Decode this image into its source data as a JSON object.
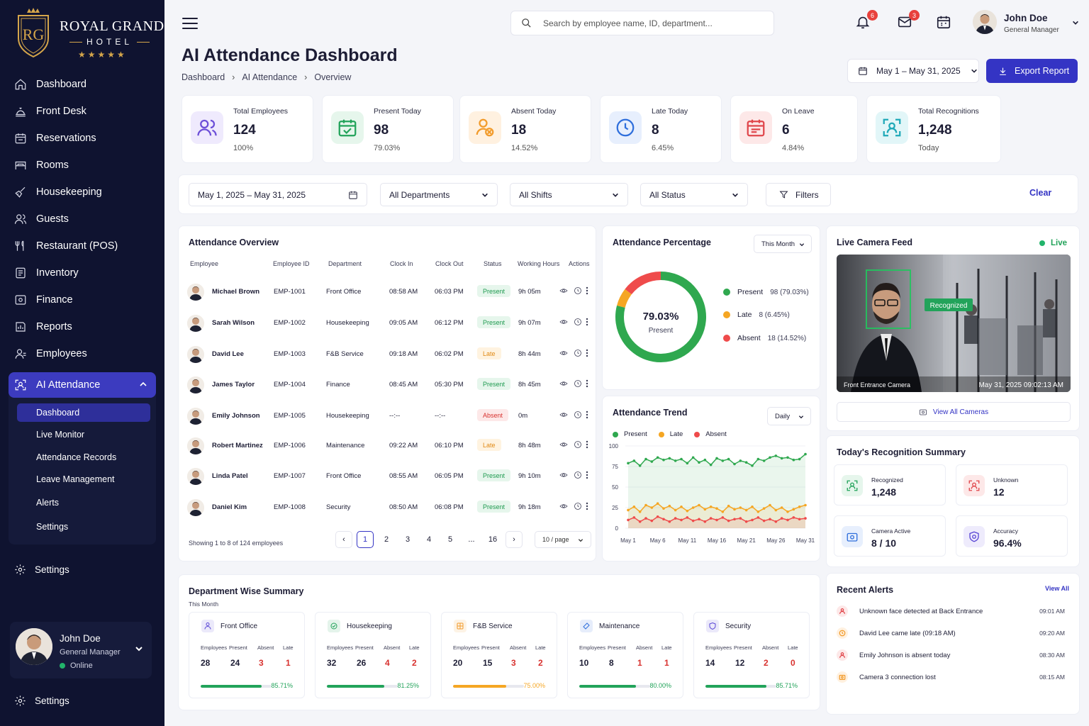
{
  "brand": {
    "monogram": "RG",
    "name": "ROYAL GRAND",
    "sub": "HOTEL",
    "stars": "★★★★★"
  },
  "sidebar": {
    "items": [
      {
        "label": "Dashboard",
        "icon": "home-icon"
      },
      {
        "label": "Front Desk",
        "icon": "bell-desk-icon"
      },
      {
        "label": "Reservations",
        "icon": "calendar-icon"
      },
      {
        "label": "Rooms",
        "icon": "bed-icon"
      },
      {
        "label": "Housekeeping",
        "icon": "broom-icon"
      },
      {
        "label": "Guests",
        "icon": "users-icon"
      },
      {
        "label": "Restaurant (POS)",
        "icon": "utensils-icon"
      },
      {
        "label": "Inventory",
        "icon": "box-icon"
      },
      {
        "label": "Finance",
        "icon": "wallet-icon"
      },
      {
        "label": "Reports",
        "icon": "chart-icon"
      },
      {
        "label": "Employees",
        "icon": "employees-icon"
      }
    ],
    "active": {
      "label": "AI Attendance",
      "icon": "ai-face-icon"
    },
    "subitems": [
      "Dashboard",
      "Live Monitor",
      "Attendance Records",
      "Leave Management",
      "Alerts",
      "Settings"
    ],
    "settings": "Settings",
    "bottom_settings": "Settings",
    "user": {
      "name": "John Doe",
      "role": "General Manager",
      "status": "Online"
    }
  },
  "header": {
    "search_placeholder": "Search by employee name, ID, department...",
    "notifications": "6",
    "messages": "3",
    "user_name": "John Doe",
    "user_role": "General Manager"
  },
  "page": {
    "title": "AI Attendance Dashboard",
    "breadcrumb": [
      "Dashboard",
      "AI Attendance",
      "Overview"
    ],
    "date_range": "May 1 – May 31, 2025",
    "export": "Export Report"
  },
  "kpis": [
    {
      "label": "Total Employees",
      "value": "124",
      "sub": "100%",
      "color": "#6c4fd8",
      "bg": "#efeafd"
    },
    {
      "label": "Present Today",
      "value": "98",
      "sub": "79.03%",
      "color": "#22a35a",
      "bg": "#e6f6ec"
    },
    {
      "label": "Absent Today",
      "value": "18",
      "sub": "14.52%",
      "color": "#f29b2b",
      "bg": "#fff1e0"
    },
    {
      "label": "Late Today",
      "value": "8",
      "sub": "6.45%",
      "color": "#2f6fdc",
      "bg": "#e7effd"
    },
    {
      "label": "On Leave",
      "value": "6",
      "sub": "4.84%",
      "color": "#e0464b",
      "bg": "#fde8e8"
    },
    {
      "label": "Total Recognitions",
      "value": "1,248",
      "sub": "Today",
      "color": "#1fa9b8",
      "bg": "#e2f6f8"
    }
  ],
  "filters": {
    "date": "May 1, 2025 – May 31, 2025",
    "department": "All Departments",
    "shift": "All Shifts",
    "status": "All Status",
    "filters": "Filters",
    "clear": "Clear"
  },
  "overview": {
    "title": "Attendance Overview",
    "columns": [
      "Employee",
      "Employee ID",
      "Department",
      "Clock In",
      "Clock Out",
      "Status",
      "Working Hours",
      "Actions"
    ],
    "rows": [
      {
        "name": "Michael Brown",
        "id": "EMP-1001",
        "dept": "Front Office",
        "in": "08:58 AM",
        "out": "06:03 PM",
        "status": "Present",
        "hours": "9h 05m"
      },
      {
        "name": "Sarah Wilson",
        "id": "EMP-1002",
        "dept": "Housekeeping",
        "in": "09:05 AM",
        "out": "06:12 PM",
        "status": "Present",
        "hours": "9h 07m"
      },
      {
        "name": "David Lee",
        "id": "EMP-1003",
        "dept": "F&B Service",
        "in": "09:18 AM",
        "out": "06:02 PM",
        "status": "Late",
        "hours": "8h 44m"
      },
      {
        "name": "James Taylor",
        "id": "EMP-1004",
        "dept": "Finance",
        "in": "08:45 AM",
        "out": "05:30 PM",
        "status": "Present",
        "hours": "8h 45m"
      },
      {
        "name": "Emily Johnson",
        "id": "EMP-1005",
        "dept": "Housekeeping",
        "in": "--:--",
        "out": "--:--",
        "status": "Absent",
        "hours": "0m"
      },
      {
        "name": "Robert Martinez",
        "id": "EMP-1006",
        "dept": "Maintenance",
        "in": "09:22 AM",
        "out": "06:10 PM",
        "status": "Late",
        "hours": "8h 48m"
      },
      {
        "name": "Linda Patel",
        "id": "EMP-1007",
        "dept": "Front Office",
        "in": "08:55 AM",
        "out": "06:05 PM",
        "status": "Present",
        "hours": "9h 10m"
      },
      {
        "name": "Daniel Kim",
        "id": "EMP-1008",
        "dept": "Security",
        "in": "08:50 AM",
        "out": "06:08 PM",
        "status": "Present",
        "hours": "9h 18m"
      }
    ],
    "footer": "Showing 1 to 8 of 124 employees",
    "pages": [
      "1",
      "2",
      "3",
      "4",
      "5",
      "...",
      "16"
    ],
    "per_page": "10 / page"
  },
  "percentage": {
    "title": "Attendance Percentage",
    "period": "This Month",
    "center_value": "79.03%",
    "center_label": "Present",
    "legend": [
      {
        "label": "Present",
        "value": "98 (79.03%)",
        "color": "#2fa84f"
      },
      {
        "label": "Late",
        "value": "8 (6.45%)",
        "color": "#f5a623"
      },
      {
        "label": "Absent",
        "value": "18 (14.52%)",
        "color": "#ef4b4b"
      }
    ]
  },
  "trend": {
    "title": "Attendance Trend",
    "period": "Daily",
    "legend": [
      "Present",
      "Late",
      "Absent"
    ]
  },
  "chart_data": [
    {
      "type": "pie",
      "title": "Attendance Percentage",
      "categories": [
        "Present",
        "Late",
        "Absent"
      ],
      "values": [
        98,
        8,
        18
      ]
    },
    {
      "type": "line",
      "title": "Attendance Trend",
      "ylim": [
        0,
        100
      ],
      "yticks": [
        "0",
        "25",
        "50",
        "75",
        "100"
      ],
      "xticks": [
        "May 1",
        "May 6",
        "May 11",
        "May 16",
        "May 21",
        "May 26",
        "May 31"
      ],
      "x": [
        "May 1",
        "May 2",
        "May 3",
        "May 4",
        "May 5",
        "May 6",
        "May 7",
        "May 8",
        "May 9",
        "May 10",
        "May 11",
        "May 12",
        "May 13",
        "May 14",
        "May 15",
        "May 16",
        "May 17",
        "May 18",
        "May 19",
        "May 20",
        "May 21",
        "May 22",
        "May 23",
        "May 24",
        "May 25",
        "May 26",
        "May 27",
        "May 28",
        "May 29",
        "May 30",
        "May 31"
      ],
      "series": [
        {
          "name": "Present",
          "color": "#2fa84f",
          "values": [
            79,
            82,
            76,
            84,
            81,
            86,
            83,
            85,
            82,
            84,
            79,
            86,
            80,
            83,
            77,
            85,
            82,
            84,
            78,
            82,
            80,
            76,
            84,
            82,
            86,
            88,
            85,
            86,
            83,
            84,
            90
          ]
        },
        {
          "name": "Late",
          "color": "#f5a623",
          "values": [
            22,
            26,
            20,
            28,
            25,
            30,
            24,
            27,
            22,
            26,
            21,
            25,
            28,
            23,
            26,
            24,
            20,
            27,
            23,
            25,
            22,
            26,
            20,
            24,
            28,
            22,
            25,
            20,
            23,
            26,
            28
          ]
        },
        {
          "name": "Absent",
          "color": "#ef4b4b",
          "values": [
            10,
            13,
            8,
            12,
            9,
            14,
            11,
            8,
            12,
            10,
            13,
            9,
            11,
            8,
            12,
            10,
            13,
            9,
            11,
            12,
            8,
            10,
            13,
            9,
            11,
            8,
            12,
            10,
            13,
            11,
            12
          ]
        }
      ]
    }
  ],
  "camera": {
    "title": "Live Camera Feed",
    "live": "Live",
    "recognized": "Recognized",
    "camera_name": "Front Entrance Camera",
    "timestamp": "May 31, 2025 09:02:13 AM",
    "view_all": "View All Cameras"
  },
  "recognition": {
    "title": "Today's Recognition Summary",
    "tiles": [
      {
        "label": "Recognized",
        "value": "1,248",
        "color": "#22a35a",
        "bg": "#e6f6ec"
      },
      {
        "label": "Unknown",
        "value": "12",
        "color": "#e0464b",
        "bg": "#fde8e8"
      },
      {
        "label": "Camera Active",
        "value": "8 / 10",
        "color": "#2f6fdc",
        "bg": "#e7effd"
      },
      {
        "label": "Accuracy",
        "value": "96.4%",
        "color": "#5b48d6",
        "bg": "#eeebfc"
      }
    ]
  },
  "alerts": {
    "title": "Recent Alerts",
    "view_all": "View All",
    "items": [
      {
        "text": "Unknown face detected at Back Entrance",
        "time": "09:01 AM",
        "color": "#e0464b",
        "bg": "#fde8e8"
      },
      {
        "text": "David Lee came late (09:18 AM)",
        "time": "09:20 AM",
        "color": "#f29b2b",
        "bg": "#fff1e0"
      },
      {
        "text": "Emily Johnson is absent today",
        "time": "08:30 AM",
        "color": "#e0464b",
        "bg": "#fde8e8"
      },
      {
        "text": "Camera 3 connection lost",
        "time": "08:15 AM",
        "color": "#f29b2b",
        "bg": "#fff1e0"
      }
    ]
  },
  "departments": {
    "title": "Department Wise Summary",
    "period": "This Month",
    "headers": [
      "Employees",
      "Present",
      "Absent",
      "Late"
    ],
    "items": [
      {
        "name": "Front Office",
        "employees": "28",
        "present": "24",
        "absent": "3",
        "late": "1",
        "pct": "85.71%",
        "progress": 0.8571,
        "color": "#5b48d6",
        "bar": "#22a35a"
      },
      {
        "name": "Housekeeping",
        "employees": "32",
        "present": "26",
        "absent": "4",
        "late": "2",
        "pct": "81.25%",
        "progress": 0.8125,
        "color": "#22a35a",
        "bar": "#22a35a"
      },
      {
        "name": "F&B Service",
        "employees": "20",
        "present": "15",
        "absent": "3",
        "late": "2",
        "pct": "75.00%",
        "progress": 0.75,
        "color": "#f29b2b",
        "bar": "#f5a623"
      },
      {
        "name": "Maintenance",
        "employees": "10",
        "present": "8",
        "absent": "1",
        "late": "1",
        "pct": "80.00%",
        "progress": 0.8,
        "color": "#2f6fdc",
        "bar": "#22a35a"
      },
      {
        "name": "Security",
        "employees": "14",
        "present": "12",
        "absent": "2",
        "late": "0",
        "pct": "85.71%",
        "progress": 0.8571,
        "color": "#5b48d6",
        "bar": "#22a35a"
      }
    ]
  }
}
